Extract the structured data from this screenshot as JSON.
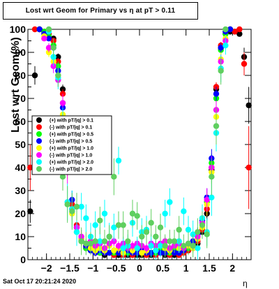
{
  "title": "Lost wrt Geom for Primary vs   η at pT > 0.11",
  "footer": "Sat Oct 17 20:21:24 2020",
  "colors": {
    "axis": "#000000",
    "frame": "#000000"
  },
  "chart_data": {
    "type": "scatter",
    "xlabel": "η",
    "ylabel": "Lost wrt Geom(%)",
    "xlim": [
      -2.4,
      2.4
    ],
    "ylim": [
      0,
      100
    ],
    "xticks": [
      -2,
      -1.5,
      -1,
      -0.5,
      0,
      0.5,
      1,
      1.5,
      2
    ],
    "xtick_labels": [
      "−2",
      "−1.5",
      "−1",
      "−0.5",
      "0",
      "0.5",
      "1",
      "1.5",
      "2"
    ],
    "yticks": [
      0,
      10,
      20,
      30,
      40,
      50,
      60,
      70,
      80,
      90,
      100
    ],
    "ytick_labels": [
      "0",
      "10",
      "20",
      "30",
      "40",
      "50",
      "60",
      "70",
      "80",
      "90",
      "100"
    ],
    "grid": false,
    "legend_position": "middle-left",
    "series": [
      {
        "name": "(+) with pT/|q| > 0.1",
        "color": "#000000",
        "x": [
          -2.35,
          -2.25,
          -2.15,
          -2.05,
          -1.95,
          -1.85,
          -1.75,
          -1.65,
          -1.55,
          -1.45,
          -1.35,
          -1.25,
          -1.15,
          -1.05,
          -0.95,
          -0.85,
          -0.75,
          -0.65,
          -0.55,
          -0.45,
          -0.35,
          -0.25,
          -0.15,
          -0.05,
          0.05,
          0.15,
          0.25,
          0.35,
          0.45,
          0.55,
          0.65,
          0.75,
          0.85,
          0.95,
          1.05,
          1.15,
          1.25,
          1.35,
          1.45,
          1.55,
          1.65,
          1.75,
          1.85,
          1.95,
          2.05,
          2.15,
          2.25,
          2.35
        ],
        "y": [
          21,
          80,
          100,
          99,
          98,
          96,
          88,
          74,
          48,
          22,
          14,
          8,
          5,
          4,
          3,
          3,
          2,
          3,
          3,
          2,
          3,
          2,
          3,
          2,
          2,
          3,
          2,
          3,
          3,
          2,
          3,
          2,
          3,
          3,
          4,
          5,
          7,
          12,
          20,
          39,
          74,
          92,
          98,
          99,
          99,
          98,
          88,
          67
        ],
        "err": [
          5,
          4,
          0.5,
          0.5,
          0.6,
          1,
          1.5,
          2,
          3,
          3,
          2,
          1.5,
          1,
          1,
          1,
          0.8,
          0.8,
          0.8,
          0.8,
          0.8,
          0.8,
          0.8,
          0.8,
          0.8,
          0.8,
          0.8,
          0.8,
          0.8,
          0.8,
          0.8,
          0.8,
          0.8,
          0.8,
          0.8,
          1,
          1,
          1.5,
          2,
          3,
          3,
          2,
          1.5,
          0.6,
          0.5,
          0.5,
          1,
          4,
          8
        ]
      },
      {
        "name": "(-) with pT/|q| > 0.1",
        "color": "#ff0000",
        "x": [
          -2.35,
          -2.25,
          -2.15,
          -2.05,
          -1.95,
          -1.85,
          -1.75,
          -1.65,
          -1.55,
          -1.45,
          -1.35,
          -1.25,
          -1.15,
          -1.05,
          -0.95,
          -0.85,
          -0.75,
          -0.65,
          -0.55,
          -0.45,
          -0.35,
          -0.25,
          -0.15,
          -0.05,
          0.05,
          0.15,
          0.25,
          0.35,
          0.45,
          0.55,
          0.65,
          0.75,
          0.85,
          0.95,
          1.05,
          1.15,
          1.25,
          1.35,
          1.45,
          1.55,
          1.65,
          1.75,
          1.85,
          1.95,
          2.05,
          2.15,
          2.25,
          2.35
        ],
        "y": [
          40,
          100,
          100,
          99,
          98,
          95,
          86,
          72,
          47,
          24,
          15,
          9,
          6,
          4,
          4,
          3,
          3,
          3,
          2,
          3,
          2,
          3,
          2,
          3,
          3,
          2,
          3,
          2,
          3,
          3,
          2,
          3,
          2,
          3,
          4,
          6,
          8,
          13,
          22,
          40,
          75,
          93,
          99,
          100,
          99,
          100,
          85,
          40
        ],
        "err": [
          10,
          0.5,
          0.5,
          0.5,
          0.6,
          1,
          1.5,
          2,
          3,
          3,
          2,
          1.5,
          1,
          1,
          1,
          0.8,
          0.8,
          0.8,
          0.8,
          0.8,
          0.8,
          0.8,
          0.8,
          0.8,
          0.8,
          0.8,
          0.8,
          0.8,
          0.8,
          0.8,
          0.8,
          0.8,
          0.8,
          0.8,
          1,
          1,
          1.5,
          2,
          3,
          3,
          2,
          1.5,
          0.6,
          0.5,
          0.5,
          0.5,
          5,
          18
        ]
      },
      {
        "name": "(+) with pT/|q| > 0.5",
        "color": "#00ff00",
        "x": [
          -2.15,
          -2.05,
          -1.95,
          -1.85,
          -1.75,
          -1.65,
          -1.55,
          -1.45,
          -1.35,
          -1.25,
          -1.15,
          -1.05,
          -0.95,
          -0.85,
          -0.75,
          -0.65,
          -0.55,
          -0.45,
          -0.35,
          -0.25,
          -0.15,
          -0.05,
          0.05,
          0.15,
          0.25,
          0.35,
          0.45,
          0.55,
          0.65,
          0.75,
          0.85,
          0.95,
          1.05,
          1.15,
          1.25,
          1.35,
          1.45,
          1.55,
          1.65,
          1.75,
          1.85,
          1.95
        ],
        "y": [
          100,
          99,
          97,
          93,
          84,
          68,
          44,
          22,
          12,
          8,
          5,
          4,
          4,
          3,
          4,
          3,
          3,
          4,
          3,
          3,
          4,
          3,
          3,
          4,
          3,
          3,
          4,
          3,
          3,
          4,
          3,
          4,
          5,
          7,
          10,
          18,
          25,
          42,
          70,
          91,
          98,
          100
        ],
        "err": [
          0.5,
          0.6,
          1,
          1.5,
          2,
          3,
          4,
          4,
          3,
          2,
          1.5,
          1.5,
          1.5,
          1.2,
          1.2,
          1.2,
          1.2,
          1.2,
          1.2,
          1.2,
          1.2,
          1.2,
          1.2,
          1.2,
          1.2,
          1.2,
          1.2,
          1.2,
          1.2,
          1.2,
          1.2,
          1.5,
          1.5,
          2,
          3,
          4,
          4,
          4,
          3,
          2,
          1,
          0.5
        ]
      },
      {
        "name": "(-) with pT/|q| > 0.5",
        "color": "#0000ff",
        "x": [
          -2.15,
          -2.05,
          -1.95,
          -1.85,
          -1.75,
          -1.65,
          -1.55,
          -1.45,
          -1.35,
          -1.25,
          -1.15,
          -1.05,
          -0.95,
          -0.85,
          -0.75,
          -0.65,
          -0.55,
          -0.45,
          -0.35,
          -0.25,
          -0.15,
          -0.05,
          0.05,
          0.15,
          0.25,
          0.35,
          0.45,
          0.55,
          0.65,
          0.75,
          0.85,
          0.95,
          1.05,
          1.15,
          1.25,
          1.35,
          1.45,
          1.55,
          1.65,
          1.75,
          1.85,
          1.95
        ],
        "y": [
          100,
          98,
          96,
          92,
          82,
          66,
          42,
          26,
          14,
          9,
          6,
          4,
          3,
          4,
          3,
          3,
          4,
          3,
          3,
          4,
          3,
          3,
          4,
          3,
          3,
          4,
          3,
          3,
          4,
          3,
          3,
          4,
          6,
          8,
          11,
          17,
          27,
          44,
          72,
          92,
          99,
          100
        ],
        "err": [
          0.5,
          0.6,
          1,
          1.5,
          2,
          3,
          4,
          4,
          3,
          2,
          1.5,
          1.5,
          1.5,
          1.2,
          1.2,
          1.2,
          1.2,
          1.2,
          1.2,
          1.2,
          1.2,
          1.2,
          1.2,
          1.2,
          1.2,
          1.2,
          1.2,
          1.2,
          1.2,
          1.2,
          1.2,
          1.5,
          1.5,
          2,
          3,
          4,
          4,
          4,
          3,
          2,
          1,
          0.5
        ]
      },
      {
        "name": "(+) with pT/|q| > 1.0",
        "color": "#ffff00",
        "x": [
          -2.05,
          -1.95,
          -1.85,
          -1.75,
          -1.65,
          -1.55,
          -1.45,
          -1.35,
          -1.25,
          -1.15,
          -1.05,
          -0.95,
          -0.85,
          -0.75,
          -0.65,
          -0.55,
          -0.45,
          -0.35,
          -0.25,
          -0.15,
          -0.05,
          0.05,
          0.15,
          0.25,
          0.35,
          0.45,
          0.55,
          0.65,
          0.75,
          0.85,
          0.95,
          1.05,
          1.15,
          1.25,
          1.35,
          1.45,
          1.55,
          1.65,
          1.75,
          1.85
        ],
        "y": [
          97,
          90,
          86,
          80,
          63,
          40,
          20,
          12,
          9,
          7,
          5,
          4,
          5,
          4,
          6,
          4,
          5,
          3,
          6,
          4,
          5,
          3,
          4,
          6,
          4,
          7,
          5,
          4,
          6,
          5,
          5,
          6,
          5,
          9,
          14,
          24,
          38,
          62,
          87,
          96
        ],
        "err": [
          1,
          2,
          3,
          3,
          4,
          5,
          5,
          4,
          3,
          2,
          2,
          2,
          2,
          2,
          2,
          2,
          2,
          2,
          2,
          2,
          2,
          2,
          2,
          2,
          2,
          2,
          2,
          2,
          2,
          2,
          2,
          2,
          2,
          3,
          4,
          5,
          5,
          4,
          3,
          1.5
        ]
      },
      {
        "name": "(-) with pT/|q| > 1.0",
        "color": "#ff00ff",
        "x": [
          -2.05,
          -1.95,
          -1.85,
          -1.75,
          -1.65,
          -1.55,
          -1.45,
          -1.35,
          -1.25,
          -1.15,
          -1.05,
          -0.95,
          -0.85,
          -0.75,
          -0.65,
          -0.55,
          -0.45,
          -0.35,
          -0.25,
          -0.15,
          -0.05,
          0.05,
          0.15,
          0.25,
          0.35,
          0.45,
          0.55,
          0.65,
          0.75,
          0.85,
          0.95,
          1.05,
          1.15,
          1.25,
          1.35,
          1.45,
          1.55,
          1.65,
          1.75,
          1.85
        ],
        "y": [
          96,
          92,
          84,
          78,
          68,
          38,
          22,
          14,
          10,
          7,
          8,
          6,
          7,
          5,
          7,
          8,
          6,
          7,
          5,
          6,
          7,
          6,
          5,
          7,
          6,
          7,
          8,
          5,
          6,
          7,
          5,
          7,
          6,
          10,
          16,
          26,
          40,
          65,
          86,
          95
        ],
        "err": [
          1,
          2,
          3,
          3,
          4,
          5,
          5,
          4,
          3,
          2,
          2,
          2,
          2,
          2,
          2,
          2,
          2,
          2,
          2,
          2,
          2,
          2,
          2,
          2,
          2,
          2,
          2,
          2,
          2,
          2,
          2,
          2,
          2,
          3,
          4,
          5,
          5,
          4,
          3,
          1.5
        ]
      },
      {
        "name": "(+) with pT/|q| > 2.0",
        "color": "#00ffff",
        "x": [
          -1.95,
          -1.85,
          -1.75,
          -1.65,
          -1.55,
          -1.45,
          -1.35,
          -1.25,
          -1.15,
          -1.05,
          -0.95,
          -0.85,
          -0.75,
          -0.65,
          -0.55,
          -0.45,
          -0.35,
          -0.25,
          -0.15,
          -0.05,
          0.05,
          0.15,
          0.25,
          0.35,
          0.45,
          0.55,
          0.65,
          0.75,
          0.85,
          0.95,
          1.05,
          1.15,
          1.25,
          1.35,
          1.45,
          1.55,
          1.65,
          1.75,
          1.85
        ],
        "y": [
          99,
          88,
          79,
          60,
          25,
          22,
          12,
          23,
          18,
          10,
          15,
          8,
          20,
          10,
          14,
          43,
          5,
          6,
          16,
          5,
          12,
          13,
          6,
          4,
          6,
          20,
          25,
          8,
          8,
          21,
          13,
          11,
          5,
          18,
          12,
          27,
          55,
          83,
          93
        ],
        "err": [
          1,
          4,
          5,
          6,
          8,
          8,
          6,
          6,
          6,
          6,
          6,
          6,
          6,
          6,
          6,
          6,
          5,
          5,
          6,
          5,
          6,
          6,
          5,
          5,
          5,
          6,
          6,
          5,
          5,
          6,
          6,
          6,
          5,
          6,
          6,
          8,
          8,
          6,
          4
        ]
      },
      {
        "name": "(-) with pT/|q| > 2.0",
        "color": "#5fcf5f",
        "x": [
          -1.95,
          -1.85,
          -1.75,
          -1.65,
          -1.55,
          -1.45,
          -1.35,
          -1.25,
          -1.15,
          -1.05,
          -0.95,
          -0.85,
          -0.75,
          -0.65,
          -0.55,
          -0.45,
          -0.35,
          -0.25,
          -0.15,
          -0.05,
          0.05,
          0.15,
          0.25,
          0.35,
          0.45,
          0.55,
          0.65,
          0.75,
          0.85,
          0.95,
          1.05,
          1.15,
          1.25,
          1.35,
          1.45,
          1.55,
          1.65,
          1.75,
          1.85
        ],
        "y": [
          100,
          92,
          80,
          36,
          24,
          21,
          23,
          8,
          7,
          7,
          8,
          17,
          8,
          10,
          36,
          15,
          15,
          8,
          20,
          19,
          10,
          12,
          16,
          10,
          14,
          6,
          8,
          8,
          13,
          6,
          7,
          6,
          12,
          15,
          11,
          36,
          58,
          82,
          100
        ],
        "err": [
          0.5,
          4,
          5,
          6,
          8,
          8,
          6,
          6,
          5,
          5,
          5,
          6,
          5,
          5,
          8,
          6,
          6,
          5,
          6,
          6,
          5,
          5,
          6,
          5,
          6,
          5,
          5,
          5,
          6,
          5,
          5,
          5,
          6,
          6,
          6,
          8,
          8,
          6,
          0.5
        ]
      }
    ]
  }
}
